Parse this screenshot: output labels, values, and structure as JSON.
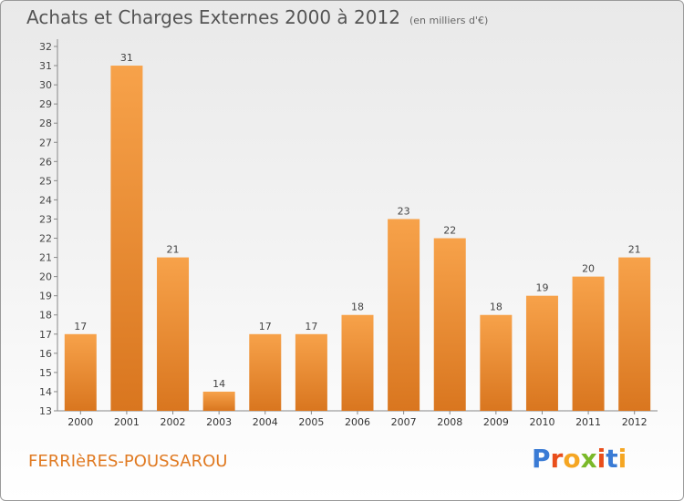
{
  "header": {
    "title": "Achats et Charges Externes 2000 à 2012",
    "subtitle": "(en milliers d'€)"
  },
  "footer": {
    "commune": "FERRIèRES-POUSSAROU",
    "logo_letters": [
      "P",
      "r",
      "o",
      "x",
      "i",
      "t",
      "i"
    ],
    "logo_colors": [
      "#3a7bd5",
      "#e94e1b",
      "#f5a623",
      "#7ab929",
      "#e94e1b",
      "#3a7bd5",
      "#f5a623"
    ]
  },
  "colors": {
    "bar_top": "#f7a24a",
    "bar_bottom": "#d9761f",
    "commune_text": "#e07a22"
  },
  "chart_data": {
    "type": "bar",
    "title": "Achats et Charges Externes 2000 à 2012",
    "subtitle": "(en milliers d'€)",
    "categories": [
      "2000",
      "2001",
      "2002",
      "2003",
      "2004",
      "2005",
      "2006",
      "2007",
      "2008",
      "2009",
      "2010",
      "2011",
      "2012"
    ],
    "values": [
      17,
      31,
      21,
      14,
      17,
      17,
      18,
      23,
      22,
      18,
      19,
      20,
      21
    ],
    "ylim": [
      13,
      32
    ],
    "yticks": [
      13,
      14,
      15,
      16,
      17,
      18,
      19,
      20,
      21,
      22,
      23,
      24,
      25,
      26,
      27,
      28,
      29,
      30,
      31,
      32
    ],
    "grid": false,
    "data_labels": true
  }
}
